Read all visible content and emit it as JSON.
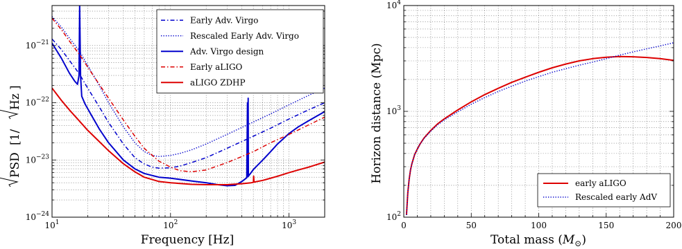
{
  "chart_data": [
    {
      "type": "line",
      "xlabel": "Frequency [Hz]",
      "ylabel_prefix": "PSD",
      "ylabel_unit": "[1/",
      "ylabel_unit_hz": "Hz",
      "ylabel_unit_close": "]",
      "xscale": "log",
      "yscale": "log",
      "xlim": [
        10,
        2000
      ],
      "ylim": [
        1e-24,
        5e-21
      ],
      "grid": true,
      "legend_position": "top-right",
      "x_ticks": [
        {
          "value": 10,
          "mant": "10",
          "exp": "1"
        },
        {
          "value": 100,
          "mant": "10",
          "exp": "2"
        },
        {
          "value": 1000,
          "mant": "10",
          "exp": "3"
        }
      ],
      "y_ticks": [
        {
          "value": 1e-24,
          "mant": "10",
          "exp": "−24"
        },
        {
          "value": 1e-23,
          "mant": "10",
          "exp": "−23"
        },
        {
          "value": 1e-22,
          "mant": "10",
          "exp": "−22"
        },
        {
          "value": 1e-21,
          "mant": "10",
          "exp": "−21"
        }
      ],
      "series": [
        {
          "name": "Early Adv. Virgo",
          "color": "#0000cc",
          "style": "dashdot",
          "x": [
            10,
            12,
            14,
            17,
            20,
            25,
            30,
            40,
            50,
            60,
            70,
            80,
            100,
            120,
            150,
            200,
            300,
            500,
            700,
            1000,
            1500,
            2000
          ],
          "y": [
            1.3e-21,
            8.5e-22,
            5.5e-22,
            3.2e-22,
            1.8e-22,
            8.5e-23,
            4.5e-23,
            1.9e-23,
            1.1e-23,
            8.5e-24,
            7.5e-24,
            7.2e-24,
            7.3e-24,
            7.8e-24,
            9e-24,
            1.1e-23,
            1.6e-23,
            2.6e-23,
            3.6e-23,
            5.2e-23,
            7.7e-23,
            1e-22
          ]
        },
        {
          "name": "Rescaled Early Adv. Virgo",
          "color": "#0000cc",
          "style": "dotted",
          "x": [
            10,
            12,
            14,
            17,
            20,
            25,
            30,
            40,
            50,
            60,
            70,
            80,
            100,
            120,
            150,
            200,
            300,
            500,
            700,
            1000,
            1500,
            2000
          ],
          "y": [
            3.2e-21,
            2.1e-21,
            1.35e-21,
            8e-22,
            4.5e-22,
            2e-22,
            1e-22,
            3.8e-23,
            2e-23,
            1.4e-23,
            1.2e-23,
            1.15e-23,
            1.2e-23,
            1.3e-23,
            1.5e-23,
            1.9e-23,
            2.8e-23,
            4.6e-23,
            6.4e-23,
            9.2e-23,
            1.38e-22,
            1.8e-22
          ]
        },
        {
          "name": "Adv. Virgo design",
          "color": "#0000cc",
          "style": "solid",
          "x": [
            10,
            12,
            14,
            15.5,
            16.4,
            16.9,
            17.1,
            17.4,
            17.8,
            19,
            21,
            25,
            30,
            40,
            50,
            60,
            80,
            100,
            150,
            200,
            250,
            300,
            350,
            400,
            440,
            446,
            448,
            450,
            452,
            454,
            460,
            500,
            600,
            700,
            800,
            1000,
            1200,
            1500,
            2000
          ],
          "y": [
            1.1e-21,
            6e-22,
            3.3e-22,
            2.4e-22,
            2.1e-22,
            3e-22,
            5e-21,
            3e-22,
            1.3e-22,
            9.5e-23,
            6.6e-23,
            3.5e-23,
            2e-23,
            1e-23,
            7e-24,
            5.8e-24,
            5e-24,
            4.8e-24,
            4.3e-24,
            4e-24,
            3.7e-24,
            3.55e-24,
            3.6e-24,
            4.2e-24,
            4.9e-24,
            1e-22,
            2.7e-23,
            5.1e-24,
            1.2e-22,
            5.2e-24,
            5.4e-24,
            6.8e-24,
            1e-23,
            1.4e-23,
            1.9e-23,
            2.9e-23,
            3.8e-23,
            5e-23,
            7e-23
          ]
        },
        {
          "name": "Early aLIGO",
          "color": "#dd0000",
          "style": "dashdot",
          "x": [
            10,
            12,
            14,
            17,
            20,
            25,
            30,
            40,
            50,
            60,
            80,
            100,
            120,
            150,
            200,
            300,
            400,
            500,
            700,
            1000,
            1500,
            2000
          ],
          "y": [
            3e-21,
            1.9e-21,
            1.2e-21,
            7e-22,
            4.2e-22,
            2.1e-22,
            1.2e-22,
            5e-23,
            2.6e-23,
            1.6e-23,
            9.5e-24,
            7.5e-24,
            6.5e-24,
            6.2e-24,
            6.7e-24,
            9e-24,
            1.15e-23,
            1.4e-23,
            2e-23,
            2.8e-23,
            4.2e-23,
            5.6e-23
          ]
        },
        {
          "name": "aLIGO ZDHP",
          "color": "#dd0000",
          "style": "solid",
          "x": [
            10,
            12,
            14,
            17,
            20,
            25,
            30,
            40,
            50,
            60,
            80,
            100,
            150,
            200,
            300,
            400,
            480,
            500,
            503,
            506,
            510,
            520,
            600,
            700,
            800,
            1000,
            1200,
            1500,
            2000
          ],
          "y": [
            1.8e-22,
            1.1e-22,
            7.5e-23,
            4.8e-23,
            3.3e-23,
            2.1e-23,
            1.45e-23,
            8.6e-24,
            6.2e-24,
            5e-24,
            4.2e-24,
            4e-24,
            3.75e-24,
            3.7e-24,
            3.7e-24,
            3.85e-24,
            4e-24,
            4.05e-24,
            5.2e-24,
            4.1e-24,
            4.1e-24,
            4.15e-24,
            4.4e-24,
            4.8e-24,
            5.2e-24,
            6e-24,
            6.7e-24,
            7.6e-24,
            9.2e-24
          ]
        }
      ]
    },
    {
      "type": "line",
      "xlabel": "Total mass (",
      "xlabel_symbol": "M",
      "xlabel_sub": "⊙",
      "xlabel_close": ")",
      "ylabel": "Horizon distance (Mpc)",
      "xscale": "linear",
      "yscale": "log",
      "xlim": [
        0,
        200
      ],
      "ylim": [
        100,
        10000
      ],
      "grid": true,
      "legend_position": "lower-right",
      "x_ticks": [
        {
          "value": 0,
          "label": "0"
        },
        {
          "value": 50,
          "label": "50"
        },
        {
          "value": 100,
          "label": "100"
        },
        {
          "value": 150,
          "label": "150"
        },
        {
          "value": 200,
          "label": "200"
        }
      ],
      "y_ticks": [
        {
          "value": 100,
          "mant": "10",
          "exp": "2"
        },
        {
          "value": 1000,
          "mant": "10",
          "exp": "3"
        },
        {
          "value": 10000,
          "mant": "10",
          "exp": "4"
        }
      ],
      "series": [
        {
          "name": "early aLIGO",
          "color": "#dd0000",
          "style": "solid",
          "x": [
            2,
            3,
            4,
            5,
            6,
            8,
            10,
            12,
            15,
            20,
            25,
            30,
            40,
            50,
            60,
            70,
            80,
            90,
            100,
            110,
            120,
            130,
            140,
            150,
            160,
            170,
            180,
            190,
            200
          ],
          "y": [
            105,
            170,
            230,
            280,
            320,
            390,
            440,
            490,
            560,
            660,
            760,
            850,
            1030,
            1230,
            1440,
            1650,
            1880,
            2100,
            2340,
            2580,
            2800,
            3000,
            3150,
            3250,
            3300,
            3280,
            3230,
            3150,
            3030
          ]
        },
        {
          "name": "Rescaled early AdV",
          "color": "#0000cc",
          "style": "dotted",
          "x": [
            2,
            3,
            4,
            5,
            6,
            8,
            10,
            12,
            15,
            20,
            25,
            30,
            40,
            50,
            60,
            70,
            80,
            90,
            100,
            110,
            120,
            130,
            140,
            150,
            160,
            170,
            180,
            190,
            200
          ],
          "y": [
            105,
            170,
            230,
            280,
            320,
            390,
            440,
            490,
            555,
            650,
            745,
            830,
            990,
            1170,
            1350,
            1540,
            1730,
            1930,
            2130,
            2340,
            2530,
            2730,
            2920,
            3150,
            3400,
            3650,
            3900,
            4150,
            4450
          ]
        }
      ]
    }
  ]
}
